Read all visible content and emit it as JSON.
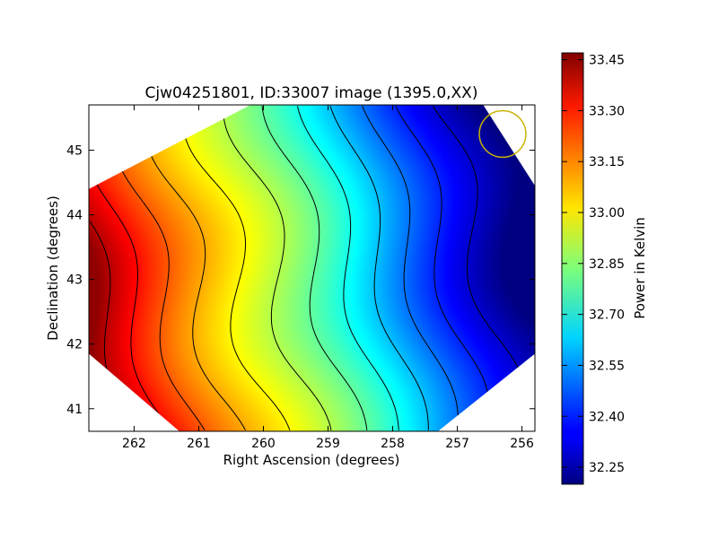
{
  "chart_data": {
    "type": "heatmap",
    "title": "Cjw04251801, ID:33007 image (1395.0,XX)",
    "xlabel": "Right Ascension (degrees)",
    "ylabel": "Declination (degrees)",
    "xlim": [
      262.7,
      255.8
    ],
    "ylim": [
      40.65,
      45.7
    ],
    "xticks": [
      262,
      261,
      260,
      259,
      258,
      257,
      256
    ],
    "yticks": [
      41,
      42,
      43,
      44,
      45
    ],
    "colorbar": {
      "label": "Power in Kelvin",
      "vmin": 32.2,
      "vmax": 33.47,
      "ticks": [
        "33.45",
        "33.30",
        "33.15",
        "33.00",
        "32.85",
        "32.70",
        "32.55",
        "32.40",
        "32.25"
      ],
      "colormap": "jet"
    },
    "field_model": {
      "description_values": "power (K) along gradient, warm in south-east corner, cool in north-west corner",
      "max_value": 33.45,
      "min_value": 32.2,
      "max_location_ra_dec": [
        262.6,
        42.4
      ],
      "min_location_ra_dec": [
        256.1,
        43.9
      ]
    },
    "footprint_corners_ra_dec": [
      [
        262.7,
        44.4
      ],
      [
        260.2,
        45.7
      ],
      [
        256.6,
        45.7
      ],
      [
        255.8,
        44.45
      ],
      [
        255.8,
        41.85
      ],
      [
        257.3,
        40.65
      ],
      [
        261.3,
        40.65
      ],
      [
        262.7,
        41.85
      ]
    ],
    "beam": {
      "ra": 256.3,
      "dec": 45.25,
      "radius_deg": 0.36,
      "color": "#c8b400"
    },
    "contour_levels": [
      32.3,
      32.4,
      32.5,
      32.6,
      32.7,
      32.8,
      32.9,
      33.0,
      33.1,
      33.2,
      33.3,
      33.4
    ]
  }
}
